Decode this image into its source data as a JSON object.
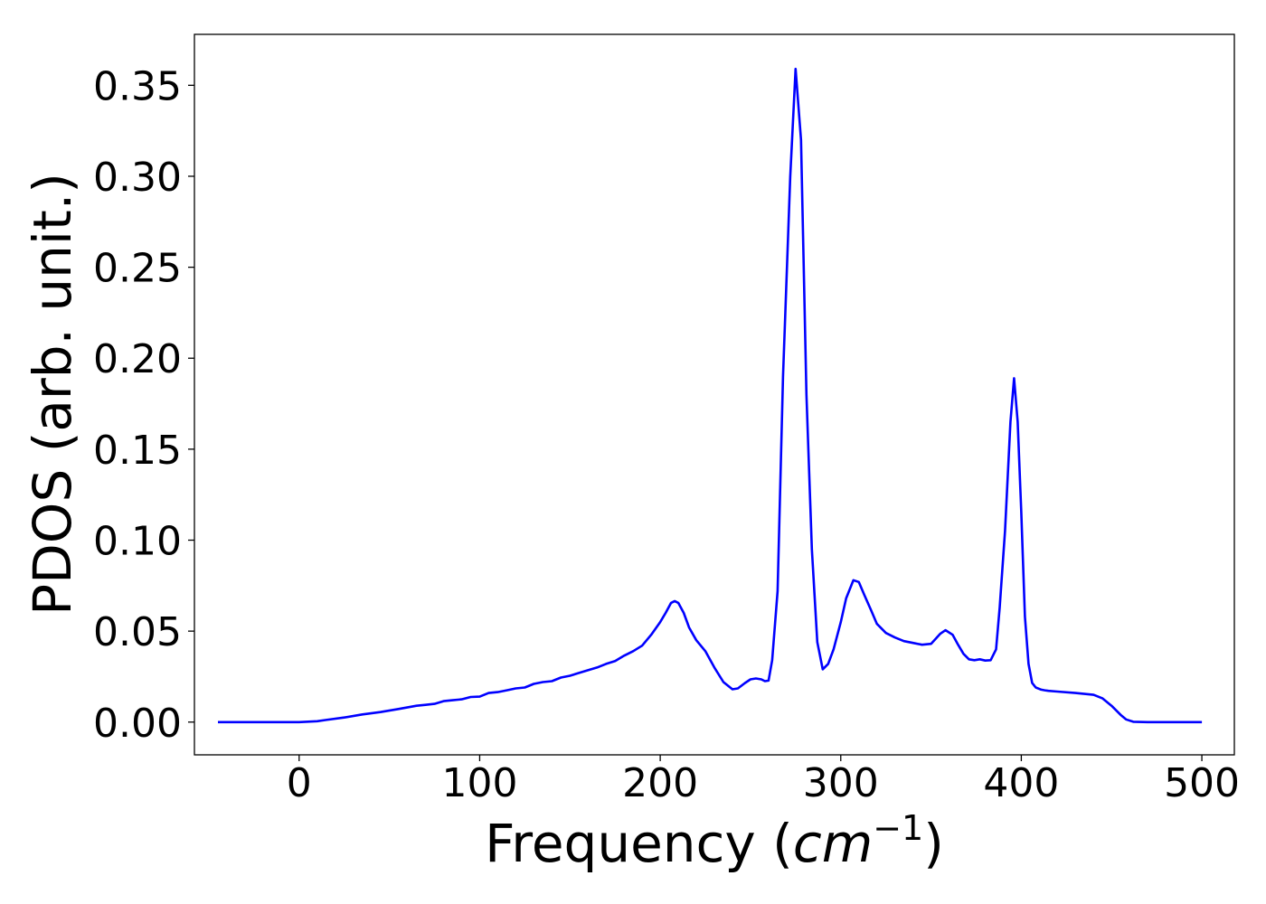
{
  "chart_data": {
    "type": "line",
    "title": "",
    "xlabel": "Frequency (cm⁻¹)",
    "xlabel_main": "Frequency (",
    "xlabel_unit": "cm",
    "xlabel_exp": "−1",
    "xlabel_close": ")",
    "ylabel": "PDOS (arb. unit.)",
    "xlim": [
      -58,
      518
    ],
    "ylim": [
      -0.018,
      0.378
    ],
    "xticks": [
      0,
      100,
      200,
      300,
      400,
      500
    ],
    "xtick_labels": [
      "0",
      "100",
      "200",
      "300",
      "400",
      "500"
    ],
    "yticks": [
      0.0,
      0.05,
      0.1,
      0.15,
      0.2,
      0.25,
      0.3,
      0.35
    ],
    "ytick_labels": [
      "0.00",
      "0.05",
      "0.10",
      "0.15",
      "0.20",
      "0.25",
      "0.30",
      "0.35"
    ],
    "grid": false,
    "series": [
      {
        "color": "#0000ff",
        "x": [
          -45,
          0,
          10,
          15,
          25,
          35,
          45,
          55,
          65,
          70,
          75,
          80,
          85,
          90,
          95,
          100,
          105,
          110,
          115,
          120,
          125,
          130,
          135,
          140,
          145,
          150,
          155,
          160,
          165,
          170,
          175,
          180,
          185,
          190,
          195,
          200,
          203,
          206,
          208,
          210,
          213,
          216,
          220,
          225,
          230,
          235,
          240,
          243,
          247,
          250,
          253,
          256,
          258,
          260,
          262,
          265,
          268,
          272,
          275,
          278,
          281,
          284,
          287,
          290,
          293,
          296,
          300,
          303,
          307,
          310,
          313,
          317,
          320,
          325,
          330,
          335,
          340,
          345,
          350,
          355,
          358,
          362,
          365,
          368,
          371,
          374,
          377,
          380,
          383,
          386,
          388,
          391,
          394,
          396,
          398,
          400,
          402,
          404,
          406,
          408,
          411,
          413,
          415,
          420,
          430,
          440,
          445,
          450,
          455,
          458,
          462,
          470,
          500
        ],
        "y": [
          0.0,
          0.0,
          0.0005,
          0.0012,
          0.0025,
          0.0042,
          0.0055,
          0.0072,
          0.009,
          0.0095,
          0.01,
          0.0115,
          0.012,
          0.0125,
          0.0138,
          0.014,
          0.016,
          0.0165,
          0.0175,
          0.0185,
          0.019,
          0.021,
          0.022,
          0.0225,
          0.0245,
          0.0255,
          0.027,
          0.0285,
          0.03,
          0.032,
          0.0335,
          0.0365,
          0.039,
          0.042,
          0.048,
          0.055,
          0.06,
          0.0655,
          0.0665,
          0.0655,
          0.06,
          0.052,
          0.045,
          0.039,
          0.03,
          0.022,
          0.018,
          0.0185,
          0.0215,
          0.0235,
          0.024,
          0.0235,
          0.0225,
          0.0228,
          0.034,
          0.072,
          0.19,
          0.3,
          0.359,
          0.32,
          0.18,
          0.095,
          0.044,
          0.029,
          0.032,
          0.04,
          0.055,
          0.068,
          0.078,
          0.077,
          0.07,
          0.061,
          0.054,
          0.049,
          0.0465,
          0.0445,
          0.0435,
          0.0425,
          0.043,
          0.0485,
          0.0505,
          0.048,
          0.0425,
          0.0375,
          0.0345,
          0.034,
          0.0345,
          0.0338,
          0.034,
          0.04,
          0.063,
          0.105,
          0.165,
          0.189,
          0.165,
          0.115,
          0.058,
          0.032,
          0.0215,
          0.019,
          0.0178,
          0.0175,
          0.0172,
          0.0168,
          0.016,
          0.015,
          0.013,
          0.009,
          0.004,
          0.0015,
          0.0002,
          0.0,
          0.0
        ]
      }
    ]
  }
}
